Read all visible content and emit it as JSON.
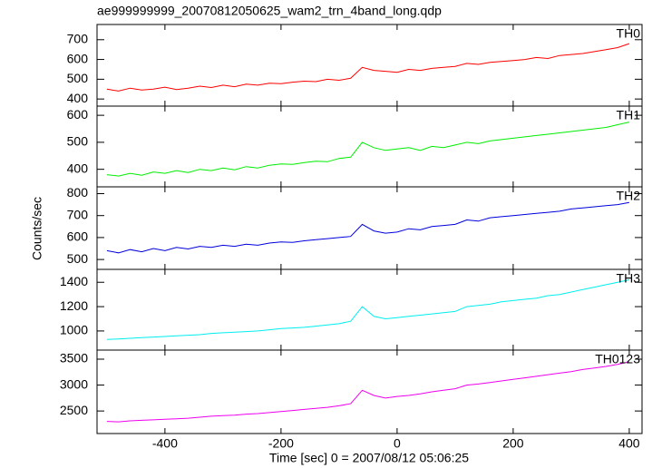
{
  "title": "ae999999999_20070812050625_wam2_trn_4band_long.qdp",
  "xlabel": "Time [sec] 0 = 2007/08/12 05:06:25",
  "ylabel": "Counts/sec",
  "xlim": [
    -517,
    422
  ],
  "xticks": [
    -400,
    -200,
    0,
    200,
    400
  ],
  "x": [
    -500,
    -480,
    -460,
    -440,
    -420,
    -400,
    -380,
    -360,
    -340,
    -320,
    -300,
    -280,
    -260,
    -240,
    -220,
    -200,
    -180,
    -160,
    -140,
    -120,
    -100,
    -80,
    -60,
    -40,
    -20,
    0,
    20,
    40,
    60,
    80,
    100,
    120,
    140,
    160,
    180,
    200,
    220,
    240,
    260,
    280,
    300,
    320,
    340,
    360,
    380,
    400
  ],
  "chart_data": [
    {
      "type": "line",
      "label": "TH0",
      "color": "#ff0000",
      "ylim": [
        364,
        777
      ],
      "yticks": [
        400,
        500,
        600,
        700
      ],
      "values": [
        450,
        440,
        455,
        445,
        450,
        460,
        448,
        455,
        465,
        458,
        470,
        462,
        475,
        470,
        480,
        478,
        485,
        490,
        488,
        500,
        495,
        505,
        560,
        545,
        540,
        535,
        550,
        545,
        555,
        560,
        565,
        580,
        575,
        585,
        590,
        595,
        600,
        610,
        605,
        620,
        625,
        630,
        640,
        650,
        660,
        680
      ]
    },
    {
      "type": "line",
      "label": "TH1",
      "color": "#00ee00",
      "ylim": [
        335,
        634
      ],
      "yticks": [
        400,
        500,
        600
      ],
      "values": [
        380,
        375,
        385,
        378,
        390,
        385,
        395,
        388,
        400,
        395,
        405,
        398,
        410,
        405,
        415,
        420,
        418,
        425,
        430,
        428,
        440,
        445,
        500,
        480,
        470,
        475,
        480,
        470,
        485,
        480,
        490,
        500,
        495,
        505,
        510,
        515,
        520,
        525,
        530,
        535,
        540,
        545,
        550,
        555,
        565,
        575
      ]
    },
    {
      "type": "line",
      "label": "TH2",
      "color": "#0000dd",
      "ylim": [
        455,
        831
      ],
      "yticks": [
        500,
        600,
        700,
        800
      ],
      "values": [
        540,
        530,
        545,
        535,
        550,
        540,
        555,
        548,
        560,
        555,
        565,
        560,
        570,
        565,
        575,
        580,
        578,
        585,
        590,
        595,
        600,
        605,
        660,
        630,
        620,
        625,
        640,
        635,
        650,
        655,
        660,
        680,
        675,
        690,
        695,
        700,
        705,
        710,
        715,
        720,
        730,
        735,
        740,
        745,
        750,
        760
      ]
    },
    {
      "type": "line",
      "label": "TH3",
      "color": "#00eeee",
      "ylim": [
        843,
        1506
      ],
      "yticks": [
        1000,
        1200,
        1400
      ],
      "values": [
        930,
        935,
        940,
        945,
        950,
        955,
        960,
        965,
        970,
        980,
        985,
        990,
        995,
        1000,
        1010,
        1020,
        1025,
        1030,
        1040,
        1050,
        1060,
        1080,
        1200,
        1120,
        1100,
        1110,
        1120,
        1130,
        1140,
        1150,
        1160,
        1200,
        1210,
        1220,
        1240,
        1250,
        1260,
        1270,
        1290,
        1300,
        1320,
        1340,
        1360,
        1380,
        1400,
        1420
      ]
    },
    {
      "type": "line",
      "label": "TH0123",
      "color": "#ee00ee",
      "ylim": [
        2065,
        3675
      ],
      "yticks": [
        2500,
        3000,
        3500
      ],
      "values": [
        2300,
        2290,
        2310,
        2320,
        2330,
        2340,
        2350,
        2360,
        2380,
        2400,
        2410,
        2420,
        2440,
        2450,
        2470,
        2490,
        2510,
        2530,
        2550,
        2570,
        2600,
        2640,
        2900,
        2800,
        2750,
        2780,
        2800,
        2830,
        2870,
        2900,
        2930,
        3000,
        3020,
        3050,
        3080,
        3110,
        3140,
        3170,
        3200,
        3230,
        3260,
        3300,
        3330,
        3360,
        3400,
        3450
      ]
    }
  ]
}
